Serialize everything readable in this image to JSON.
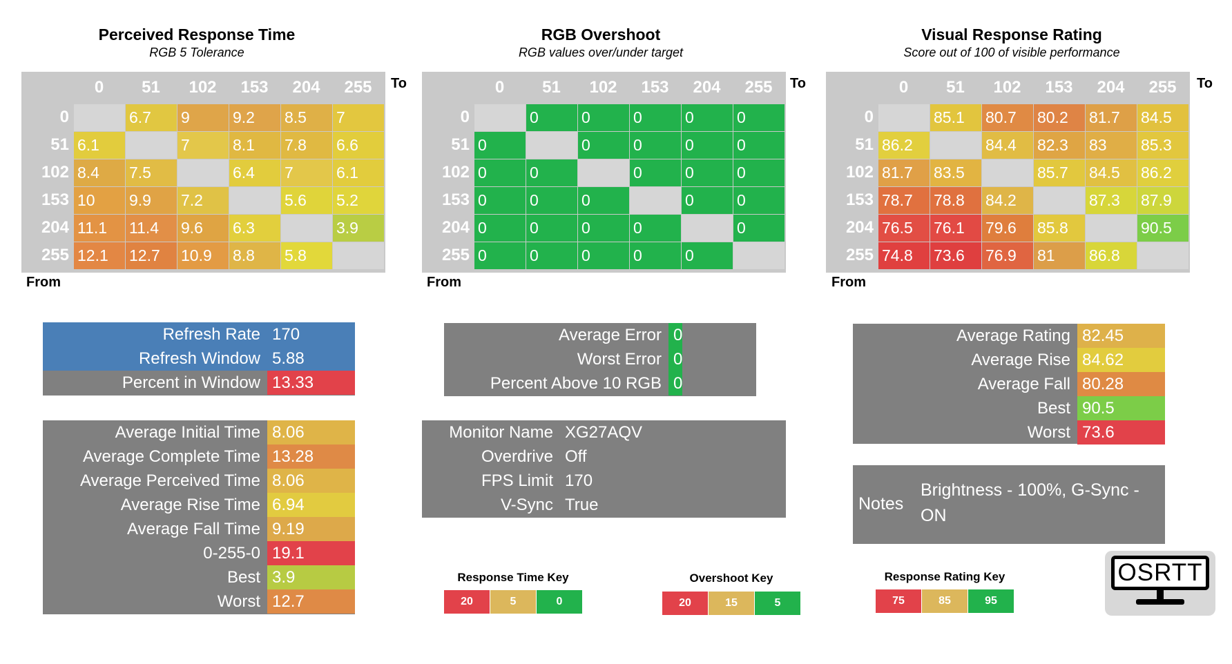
{
  "labels": {
    "to": "To",
    "from": "From"
  },
  "colors": {
    "gray_cell": "#c9c9c9",
    "panel": "#808080",
    "blue": "#4a7fb7"
  },
  "axis_values": [
    "0",
    "51",
    "102",
    "153",
    "204",
    "255"
  ],
  "heatmaps": [
    {
      "title": "Perceived Response Time",
      "subtitle": "RGB 5 Tolerance",
      "rows": [
        [
          "",
          "6.7",
          "9",
          "9.2",
          "8.5",
          "7"
        ],
        [
          "6.1",
          "",
          "7",
          "8.1",
          "7.8",
          "6.6"
        ],
        [
          "8.4",
          "7.5",
          "",
          "6.4",
          "7",
          "6.1"
        ],
        [
          "10",
          "9.9",
          "7.2",
          "",
          "5.6",
          "5.2"
        ],
        [
          "11.1",
          "11.4",
          "9.6",
          "6.3",
          "",
          "3.9"
        ],
        [
          "12.1",
          "12.7",
          "10.9",
          "8.8",
          "5.8",
          ""
        ]
      ],
      "colors": [
        [
          "#d6d6d6",
          "#e1c741",
          "#dfa549",
          "#dfa44a",
          "#dfb047",
          "#e3c73f"
        ],
        [
          "#e2cc3d",
          "#d6d6d6",
          "#e3c74a",
          "#e0b842",
          "#e0b942",
          "#e2cd3c"
        ],
        [
          "#deaa45",
          "#e1bc45",
          "#d6d6d6",
          "#e2cc3d",
          "#e3c74a",
          "#e2cc3d"
        ],
        [
          "#e3a143",
          "#e0a345",
          "#e0c246",
          "#d6d6d6",
          "#e0d43a",
          "#e0d53b"
        ],
        [
          "#e39344",
          "#e28f47",
          "#dfa443",
          "#e2cf3d",
          "#d6d6d6",
          "#b9cd44"
        ],
        [
          "#e38744",
          "#e08341",
          "#e39b44",
          "#dfb547",
          "#e2d83a",
          "#d6d6d6"
        ]
      ]
    },
    {
      "title": "RGB Overshoot",
      "subtitle": "RGB values over/under target",
      "rows": [
        [
          "",
          "0",
          "0",
          "0",
          "0",
          "0"
        ],
        [
          "0",
          "",
          "0",
          "0",
          "0",
          "0"
        ],
        [
          "0",
          "0",
          "",
          "0",
          "0",
          "0"
        ],
        [
          "0",
          "0",
          "0",
          "",
          "0",
          "0"
        ],
        [
          "0",
          "0",
          "0",
          "0",
          "",
          "0"
        ],
        [
          "0",
          "0",
          "0",
          "0",
          "0",
          ""
        ]
      ],
      "colors": [
        [
          "#d6d6d6",
          "#22b24c",
          "#22b24c",
          "#22b24c",
          "#22b24c",
          "#22b24c"
        ],
        [
          "#22b24c",
          "#d6d6d6",
          "#22b24c",
          "#22b24c",
          "#22b24c",
          "#22b24c"
        ],
        [
          "#22b24c",
          "#22b24c",
          "#d6d6d6",
          "#22b24c",
          "#22b24c",
          "#22b24c"
        ],
        [
          "#22b24c",
          "#22b24c",
          "#22b24c",
          "#d6d6d6",
          "#22b24c",
          "#22b24c"
        ],
        [
          "#22b24c",
          "#22b24c",
          "#22b24c",
          "#22b24c",
          "#d6d6d6",
          "#22b24c"
        ],
        [
          "#22b24c",
          "#22b24c",
          "#22b24c",
          "#22b24c",
          "#22b24c",
          "#d6d6d6"
        ]
      ]
    },
    {
      "title": "Visual Response Rating",
      "subtitle": "Score out of 100 of visible performance",
      "rows": [
        [
          "",
          "85.1",
          "80.7",
          "80.2",
          "81.7",
          "84.5"
        ],
        [
          "86.2",
          "",
          "84.4",
          "82.3",
          "83",
          "85.3"
        ],
        [
          "81.7",
          "83.5",
          "",
          "85.7",
          "84.5",
          "86.2"
        ],
        [
          "78.7",
          "78.8",
          "84.2",
          "",
          "87.3",
          "87.9"
        ],
        [
          "76.5",
          "76.1",
          "79.6",
          "85.8",
          "",
          "90.5"
        ],
        [
          "74.8",
          "73.6",
          "76.9",
          "81",
          "86.8",
          ""
        ]
      ],
      "colors": [
        [
          "#d6d6d6",
          "#e2c53e",
          "#e08a44",
          "#df8445",
          "#dea047",
          "#e2c13e"
        ],
        [
          "#e2cf3e",
          "#d6d6d6",
          "#e1bc44",
          "#dfa544",
          "#e0ae46",
          "#e2c73e"
        ],
        [
          "#e0a047",
          "#e2b442",
          "#d6d6d6",
          "#e2c83e",
          "#e1c042",
          "#e0cf3d"
        ],
        [
          "#e1713f",
          "#e0713f",
          "#dfb548",
          "#d6d6d6",
          "#d7d63a",
          "#cdd63c"
        ],
        [
          "#e24e44",
          "#e24a44",
          "#df7e3d",
          "#e2c83e",
          "#d6d6d6",
          "#7ccd48"
        ],
        [
          "#e0403f",
          "#df3f3f",
          "#e06541",
          "#dc9e49",
          "#d8d639",
          "#d6d6d6"
        ]
      ]
    }
  ],
  "refresh_panel": {
    "rows": [
      {
        "label": "Refresh Rate",
        "value": "170",
        "bg": "#4a7fb7",
        "value_bg": "#4a7fb7"
      },
      {
        "label": "Refresh Window",
        "value": "5.88",
        "bg": "#4a7fb7",
        "value_bg": "#4a7fb7"
      },
      {
        "label": "Percent in Window",
        "value": "13.33",
        "bg": "#808080",
        "value_bg": "#e2424a"
      }
    ]
  },
  "time_panel": {
    "rows": [
      {
        "label": "Average Initial Time",
        "value": "8.06",
        "value_bg": "#dfb448"
      },
      {
        "label": "Average Complete Time",
        "value": "13.28",
        "value_bg": "#df8a46"
      },
      {
        "label": "Average Perceived Time",
        "value": "8.06",
        "value_bg": "#dfb448"
      },
      {
        "label": "Average Rise Time",
        "value": "6.94",
        "value_bg": "#e2cb40"
      },
      {
        "label": "Average Fall Time",
        "value": "9.19",
        "value_bg": "#dda94a"
      },
      {
        "label": "0-255-0",
        "value": "19.1",
        "value_bg": "#e2424a"
      },
      {
        "label": "Best",
        "value": "3.9",
        "value_bg": "#b7cb43"
      },
      {
        "label": "Worst",
        "value": "12.7",
        "value_bg": "#df8a46"
      }
    ]
  },
  "error_panel": {
    "rows": [
      {
        "label": "Average Error",
        "value": "0",
        "value_bg": "#22b24c"
      },
      {
        "label": "Worst Error",
        "value": "0",
        "value_bg": "#22b24c"
      },
      {
        "label": "Percent Above 10 RGB",
        "value": "0",
        "value_bg": "#22b24c"
      }
    ]
  },
  "monitor_panel": {
    "rows": [
      {
        "label": "Monitor Name",
        "value": "XG27AQV"
      },
      {
        "label": "Overdrive",
        "value": "Off"
      },
      {
        "label": "FPS Limit",
        "value": "170"
      },
      {
        "label": "V-Sync",
        "value": "True"
      }
    ]
  },
  "rating_panel": {
    "rows": [
      {
        "label": "Average Rating",
        "value": "82.45",
        "value_bg": "#deb14a"
      },
      {
        "label": "Average Rise",
        "value": "84.62",
        "value_bg": "#e2cc3e"
      },
      {
        "label": "Average Fall",
        "value": "80.28",
        "value_bg": "#df8a44"
      },
      {
        "label": "Best",
        "value": "90.5",
        "value_bg": "#7ccd48"
      },
      {
        "label": "Worst",
        "value": "73.6",
        "value_bg": "#e2424a"
      }
    ]
  },
  "notes_panel": {
    "label": "Notes",
    "text_line1": "Brightness - 100%, G-Sync -",
    "text_line2": "ON"
  },
  "keys": [
    {
      "title": "Response Time Key",
      "cells": [
        {
          "label": "20",
          "color": "#e2424a"
        },
        {
          "label": "5",
          "color": "#dcb75c"
        },
        {
          "label": "0",
          "color": "#22b24c"
        }
      ]
    },
    {
      "title": "Overshoot Key",
      "cells": [
        {
          "label": "20",
          "color": "#e2424a"
        },
        {
          "label": "15",
          "color": "#dcb75c"
        },
        {
          "label": "5",
          "color": "#22b24c"
        }
      ]
    },
    {
      "title": "Response Rating Key",
      "cells": [
        {
          "label": "75",
          "color": "#e2424a"
        },
        {
          "label": "85",
          "color": "#dcb75c"
        },
        {
          "label": "95",
          "color": "#22b24c"
        }
      ]
    }
  ],
  "logo": {
    "text": "OSRTT"
  }
}
